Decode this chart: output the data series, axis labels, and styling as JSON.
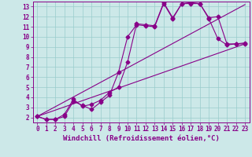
{
  "xlabel": "Windchill (Refroidissement éolien,°C)",
  "bg_color": "#cce8e8",
  "grid_color": "#99cccc",
  "line_color": "#880088",
  "xlim": [
    -0.5,
    23.5
  ],
  "ylim": [
    1.5,
    13.5
  ],
  "xticks": [
    0,
    1,
    2,
    3,
    4,
    5,
    6,
    7,
    8,
    9,
    10,
    11,
    12,
    13,
    14,
    15,
    16,
    17,
    18,
    19,
    20,
    21,
    22,
    23
  ],
  "yticks": [
    2,
    3,
    4,
    5,
    6,
    7,
    8,
    9,
    10,
    11,
    12,
    13
  ],
  "line1_x": [
    0,
    1,
    2,
    3,
    4,
    5,
    6,
    7,
    8,
    9,
    10,
    11,
    12,
    13,
    14,
    15,
    16,
    17,
    18,
    19,
    20,
    21,
    22,
    23
  ],
  "line1_y": [
    2.1,
    1.8,
    1.8,
    2.1,
    3.6,
    3.2,
    2.8,
    3.5,
    4.2,
    6.5,
    10.0,
    11.2,
    11.1,
    11.0,
    13.3,
    11.8,
    13.3,
    13.3,
    13.3,
    11.8,
    9.8,
    9.2,
    9.3,
    9.3
  ],
  "line2_x": [
    0,
    1,
    2,
    3,
    4,
    5,
    6,
    7,
    8,
    9,
    10,
    11,
    12,
    13,
    14,
    15,
    16,
    17,
    18,
    19,
    20,
    21,
    22,
    23
  ],
  "line2_y": [
    2.1,
    1.8,
    1.8,
    2.3,
    3.8,
    3.1,
    3.3,
    3.7,
    4.5,
    5.0,
    7.5,
    11.3,
    11.2,
    11.1,
    13.4,
    11.9,
    13.3,
    13.4,
    13.3,
    11.9,
    12.0,
    9.3,
    9.3,
    9.4
  ],
  "line3_x": [
    0,
    23
  ],
  "line3_y": [
    2.1,
    13.2
  ],
  "line4_x": [
    0,
    23
  ],
  "line4_y": [
    2.1,
    9.3
  ],
  "marker_size": 2.5,
  "line_width": 0.8,
  "font_size_ticks": 5.5,
  "font_size_xlabel": 6.5
}
